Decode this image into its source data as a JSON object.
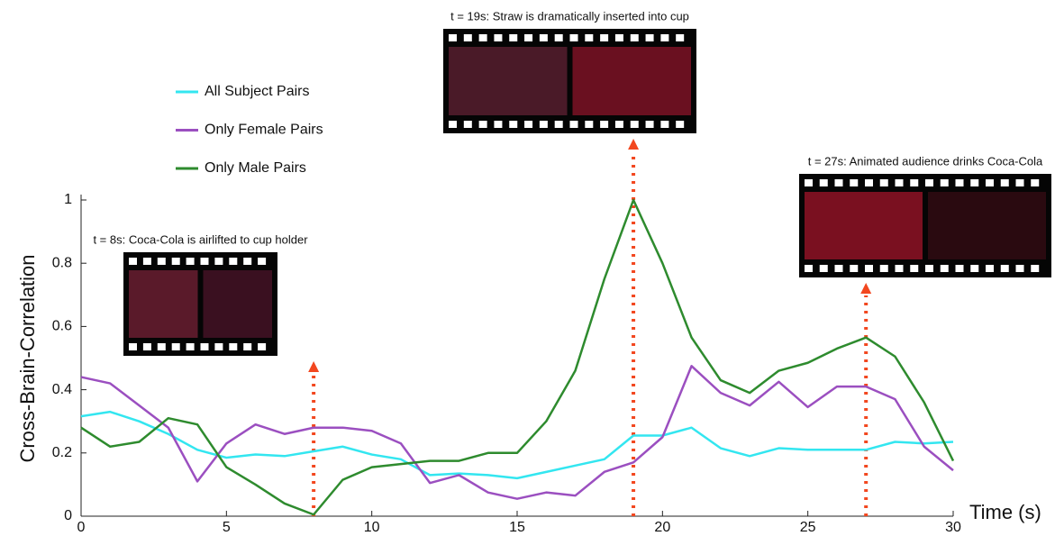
{
  "chart_data": {
    "type": "line",
    "y_label": "Cross-Brain-Correlation",
    "x_label": "Time (s)",
    "x": [
      0,
      1,
      2,
      3,
      4,
      5,
      6,
      7,
      8,
      9,
      10,
      11,
      12,
      13,
      14,
      15,
      16,
      17,
      18,
      19,
      20,
      21,
      22,
      23,
      24,
      25,
      26,
      27,
      28,
      29,
      30
    ],
    "series": [
      {
        "name": "All Subject Pairs",
        "color": "#33e6f0",
        "values": [
          0.316,
          0.33,
          0.3,
          0.26,
          0.21,
          0.185,
          0.195,
          0.19,
          0.205,
          0.22,
          0.195,
          0.18,
          0.13,
          0.135,
          0.13,
          0.12,
          0.14,
          0.16,
          0.18,
          0.255,
          0.255,
          0.28,
          0.215,
          0.19,
          0.215,
          0.21,
          0.21,
          0.21,
          0.235,
          0.23,
          0.235
        ]
      },
      {
        "name": "Only Female Pairs",
        "color": "#9b4fc0",
        "values": [
          0.44,
          0.42,
          0.35,
          0.28,
          0.11,
          0.23,
          0.29,
          0.26,
          0.28,
          0.28,
          0.27,
          0.23,
          0.105,
          0.13,
          0.075,
          0.055,
          0.075,
          0.065,
          0.14,
          0.17,
          0.25,
          0.475,
          0.39,
          0.35,
          0.425,
          0.345,
          0.41,
          0.41,
          0.37,
          0.22,
          0.145
        ]
      },
      {
        "name": "Only Male Pairs",
        "color": "#2e8b2e",
        "values": [
          0.28,
          0.22,
          0.235,
          0.31,
          0.29,
          0.155,
          0.1,
          0.04,
          0.005,
          0.115,
          0.155,
          0.165,
          0.175,
          0.175,
          0.2,
          0.2,
          0.3,
          0.46,
          0.75,
          1.0,
          0.8,
          0.565,
          0.43,
          0.39,
          0.46,
          0.485,
          0.53,
          0.565,
          0.505,
          0.36,
          0.175
        ]
      }
    ],
    "xlim": [
      0,
      30
    ],
    "xticks": [
      0,
      5,
      10,
      15,
      20,
      25,
      30
    ],
    "ylim": [
      0,
      1
    ],
    "yticks": [
      0,
      0.2,
      0.4,
      0.6,
      0.8,
      1
    ],
    "legend": "upper left",
    "annotations": [
      {
        "text": "t = 8s: Coca-Cola is airlifted to cup holder",
        "x": 8
      },
      {
        "text": "t = 19s: Straw is dramatically inserted into cup",
        "x": 19
      },
      {
        "text": "t = 27s: Animated audience drinks Coca-Cola",
        "x": 27
      }
    ],
    "annotation_color": "#f2471f"
  }
}
